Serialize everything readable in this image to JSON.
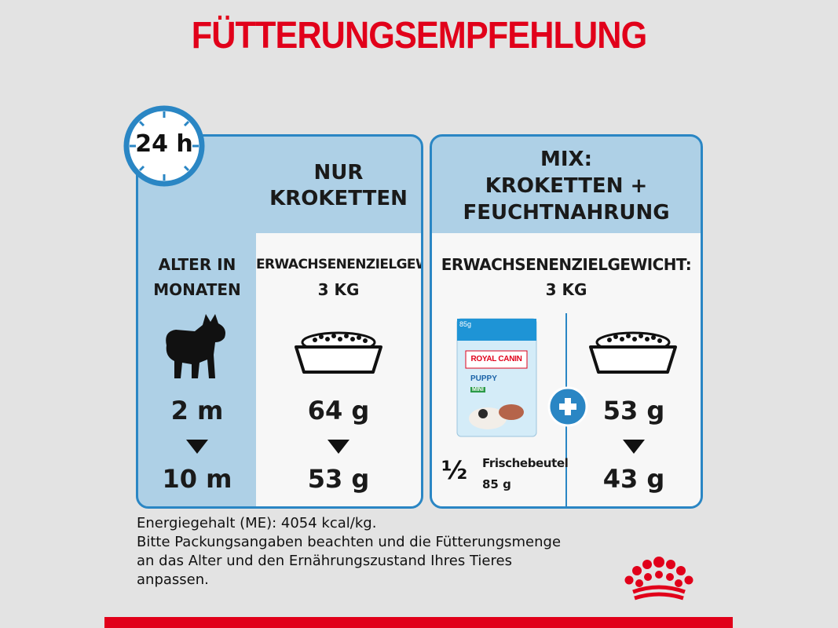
{
  "title": "FÜTTERUNGSEMPFEHLUNG",
  "clock_label": "24 h",
  "left_panel": {
    "header_line1": "NUR",
    "header_line2": "KROKETTEN",
    "age_label_line1": "ALTER IN",
    "age_label_line2": "MONATEN",
    "weight_label": "ERWACHSENENZIELGEWICHT:",
    "weight_value": "3 KG",
    "age_start": "2 m",
    "age_end": "10 m",
    "amount_start": "64 g",
    "amount_end": "53 g"
  },
  "right_panel": {
    "header_line1": "MIX:",
    "header_line2": "KROKETTEN +",
    "header_line3": "FEUCHTNAHRUNG",
    "weight_label": "ERWACHSENENZIELGEWICHT:",
    "weight_value": "3 KG",
    "pouch_fraction": "½",
    "pouch_label": "Frischebeutel",
    "pouch_weight": "85 g",
    "pouch_brand": "ROYAL CANIN",
    "pouch_size": "85g",
    "pouch_product": "PUPPY",
    "pouch_variant": "MINI",
    "amount_start": "53 g",
    "amount_end": "43 g"
  },
  "footnote": {
    "line1": "Energiegehalt (ME): 4054 kcal/kg.",
    "line2": "Bitte Packungsangaben beachten und die Fütterungsmenge",
    "line3": "an das Alter und den Ernährungszustand Ihres Tieres",
    "line4": "anpassen."
  },
  "colors": {
    "accent_red": "#e1001a",
    "panel_blue": "#aed0e6",
    "border_blue": "#2a86c4"
  }
}
